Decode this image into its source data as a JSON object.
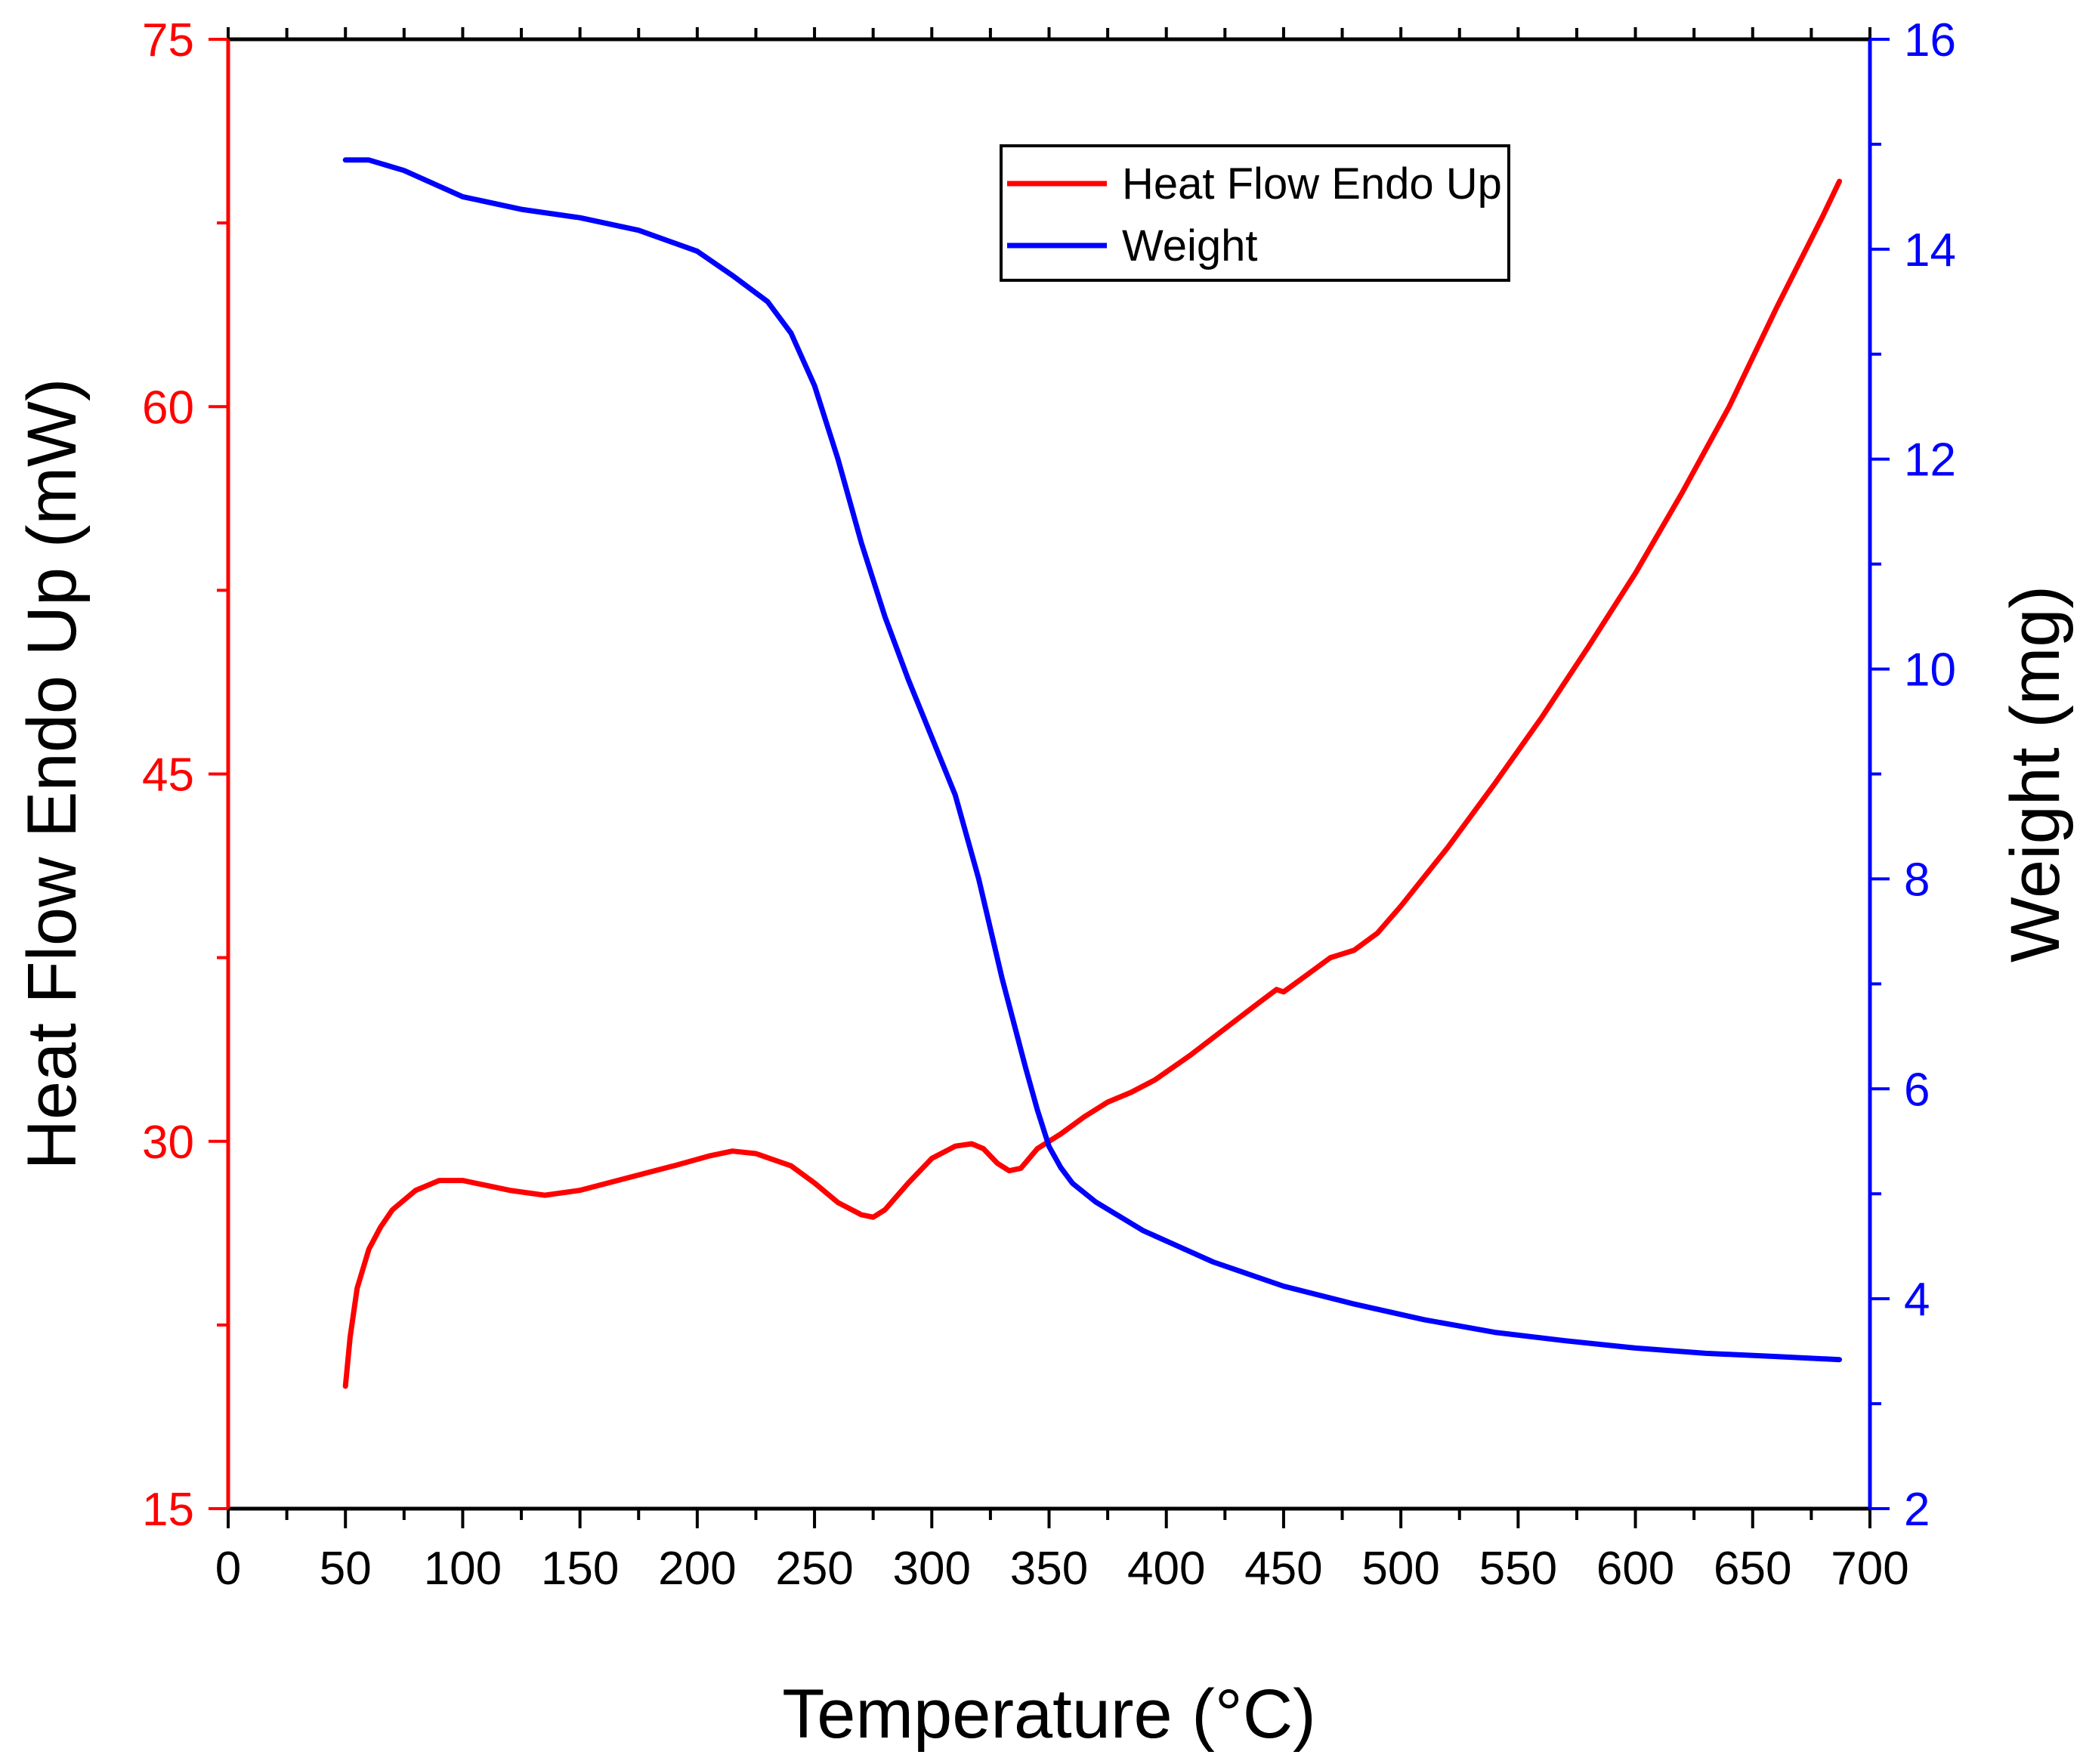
{
  "chart_data": {
    "type": "line",
    "xlabel": "Temperature (°C)",
    "ylabel_left": "Heat Flow Endo Up (mW)",
    "ylabel_right": "Weight (mg)",
    "xlim": [
      0,
      700
    ],
    "ylim_left": [
      15,
      75
    ],
    "ylim_right": [
      2,
      16
    ],
    "x_ticks": [
      0,
      50,
      100,
      150,
      200,
      250,
      300,
      350,
      400,
      450,
      500,
      550,
      600,
      650,
      700
    ],
    "y_left_ticks": [
      15,
      30,
      45,
      60,
      75
    ],
    "y_right_ticks": [
      2,
      4,
      6,
      8,
      10,
      12,
      14,
      16
    ],
    "colors": {
      "left_axis": "#ff0000",
      "right_axis": "#0000ff",
      "x_axis": "#000000"
    },
    "grid": false,
    "legend_position": "top-center",
    "series": [
      {
        "name": "Heat Flow Endo Up",
        "axis": "left",
        "color": "#ff0000",
        "x": [
          50,
          52,
          55,
          60,
          65,
          70,
          80,
          90,
          100,
          110,
          120,
          135,
          150,
          170,
          190,
          205,
          215,
          225,
          240,
          250,
          260,
          270,
          275,
          280,
          290,
          300,
          310,
          317,
          322,
          328,
          333,
          338,
          345,
          355,
          365,
          375,
          385,
          395,
          410,
          425,
          440,
          447,
          450,
          460,
          470,
          480,
          490,
          500,
          520,
          540,
          560,
          580,
          600,
          620,
          640,
          660,
          680,
          687
        ],
        "y": [
          20.0,
          22.0,
          24.0,
          25.6,
          26.5,
          27.2,
          28.0,
          28.4,
          28.4,
          28.2,
          28.0,
          27.8,
          28.0,
          28.5,
          29.0,
          29.4,
          29.6,
          29.5,
          29.0,
          28.3,
          27.5,
          27.0,
          26.9,
          27.2,
          28.3,
          29.3,
          29.8,
          29.9,
          29.7,
          29.1,
          28.8,
          28.9,
          29.7,
          30.3,
          31.0,
          31.6,
          32.0,
          32.5,
          33.5,
          34.6,
          35.7,
          36.2,
          36.1,
          36.8,
          37.5,
          37.8,
          38.5,
          39.6,
          42.0,
          44.6,
          47.3,
          50.2,
          53.2,
          56.5,
          60.0,
          64.0,
          67.8,
          69.2
        ]
      },
      {
        "name": "Weight",
        "axis": "right",
        "color": "#0000ff",
        "x": [
          50,
          60,
          75,
          100,
          125,
          150,
          175,
          200,
          215,
          230,
          240,
          250,
          260,
          270,
          280,
          290,
          300,
          310,
          320,
          330,
          340,
          345,
          350,
          355,
          360,
          370,
          390,
          420,
          450,
          480,
          510,
          540,
          570,
          600,
          630,
          660,
          687
        ],
        "y": [
          14.85,
          14.85,
          14.75,
          14.5,
          14.38,
          14.3,
          14.18,
          13.98,
          13.75,
          13.5,
          13.2,
          12.7,
          12.0,
          11.2,
          10.5,
          9.9,
          9.35,
          8.8,
          8.0,
          7.05,
          6.2,
          5.8,
          5.45,
          5.25,
          5.1,
          4.92,
          4.65,
          4.35,
          4.12,
          3.95,
          3.8,
          3.68,
          3.6,
          3.53,
          3.48,
          3.45,
          3.42
        ]
      }
    ]
  }
}
